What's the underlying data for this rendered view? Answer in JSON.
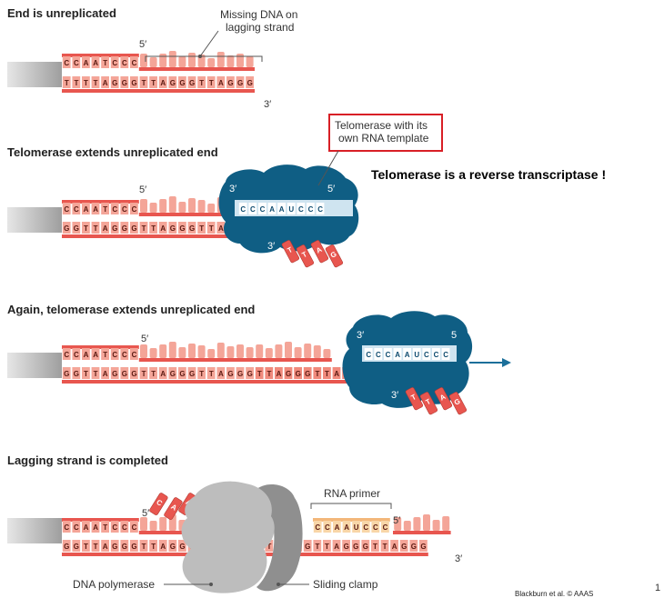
{
  "panels": [
    {
      "title": "End is unreplicated",
      "top_seq": "CCAATCCC",
      "bottom_seq": "TTTTAGGGTTAGGGTTAGGG",
      "callout": "Missing DNA on\nlagging strand",
      "five_prime": "5′",
      "three_prime": "3′"
    },
    {
      "title": "Telomerase extends unreplicated end",
      "top_seq": "CCAATCCC",
      "bottom_seq": "GGTTAGGGTTAGGGTTAGGG",
      "rna_template": "CCCAAUCCC",
      "new_bases": "TTAG",
      "five_prime": "5′",
      "enzyme_3": "3′",
      "enzyme_5": "5′",
      "three_prime": "3′"
    },
    {
      "title": "Again, telomerase extends unreplicated end",
      "top_seq": "CCAATCCC",
      "bottom_seq": "GGTTAGGGTTAGGGTTAGGGTTAGGGTTAGGG",
      "rna_template": "CCCAAUCCC",
      "new_bases": "TTAG",
      "five_prime": "5′",
      "enzyme_3": "3′",
      "enzyme_5": "5",
      "three_prime": "3′"
    },
    {
      "title": "Lagging strand is completed",
      "top_seq": "CCAATCCC",
      "bottom_seq": "GGTTAGGGTTAGGGTTAGGGTTAGGGTTAGGGTTAGGG",
      "primer_seq": "CCAAUCCC",
      "new_top": "TCCC",
      "nucleotides": "CAA",
      "five_prime_left": "5′",
      "five_prime_right": "5′",
      "three_prime": "3′"
    }
  ],
  "callouts": {
    "telomerase_box": "Telomerase with its\nown RNA template",
    "rna_primer": "RNA primer",
    "dna_polymerase": "DNA polymerase",
    "sliding_clamp": "Sliding clamp"
  },
  "note": "Telomerase is a reverse transcriptase !",
  "credit": "Blackburn et al. © AAAS",
  "page_number": "1",
  "colors": {
    "dna_pink": "#f4a598",
    "dna_red": "#e8564f",
    "enzyme_teal": "#0f5e84",
    "rna_light": "#cfe4f0",
    "primer_orange": "#f8d6a8",
    "polymerase_gray": "#bdbdbd",
    "clamp_gray": "#8f8f8f",
    "box_red": "#d81f26"
  }
}
